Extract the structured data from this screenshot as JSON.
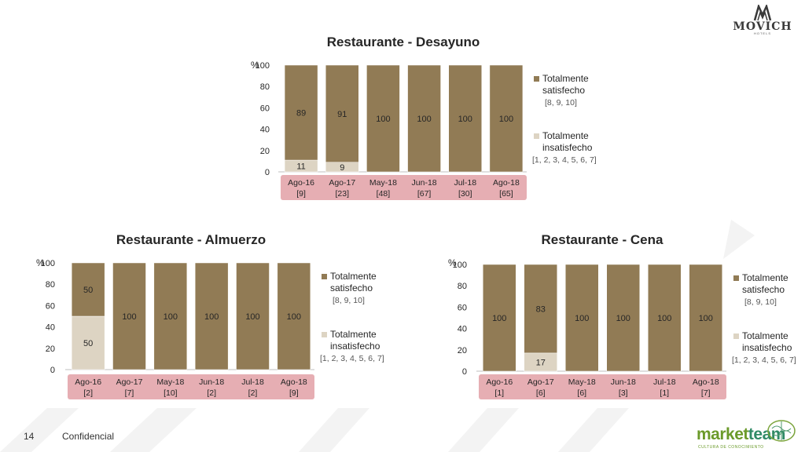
{
  "brand_logo": {
    "name": "MOVICH",
    "sub": "HOTELS"
  },
  "footer": {
    "page": "14",
    "label": "Confidencial",
    "partner_logo": {
      "main_a": "market",
      "main_b": "team",
      "sub": "CULTURA DE CONOCIMIENTO"
    }
  },
  "colors": {
    "satisfied": "#917b55",
    "unsatisfied": "#ddd4c3",
    "xband": "#e6aeb3",
    "text": "#262626"
  },
  "chart_data": [
    {
      "type": "bar",
      "stacked": true,
      "title": "Restaurante - Desayuno",
      "y_unit": "%",
      "ylim": [
        0,
        100
      ],
      "yticks": [
        0,
        20,
        40,
        60,
        80,
        100
      ],
      "categories": [
        "Ago-16",
        "Ago-17",
        "May-18",
        "Jun-18",
        "Jul-18",
        "Ago-18"
      ],
      "n_labels": [
        "[9]",
        "[23]",
        "[48]",
        "[67]",
        "[30]",
        "[65]"
      ],
      "series": [
        {
          "name": "Totalmente insatisfecho",
          "scale": "[1, 2, 3, 4, 5, 6, 7]",
          "values": [
            11,
            9,
            0,
            0,
            0,
            0
          ],
          "labels": [
            "11",
            "9",
            "",
            "",
            "",
            ""
          ]
        },
        {
          "name": "Totalmente satisfecho",
          "scale": "[8, 9, 10]",
          "values": [
            89,
            91,
            100,
            100,
            100,
            100
          ],
          "labels": [
            "89",
            "91",
            "100",
            "100",
            "100",
            "100"
          ]
        }
      ],
      "legend": "right"
    },
    {
      "type": "bar",
      "stacked": true,
      "title": "Restaurante - Almuerzo",
      "y_unit": "%",
      "ylim": [
        0,
        100
      ],
      "yticks": [
        0,
        20,
        40,
        60,
        80,
        100
      ],
      "categories": [
        "Ago-16",
        "Ago-17",
        "May-18",
        "Jun-18",
        "Jul-18",
        "Ago-18"
      ],
      "n_labels": [
        "[2]",
        "[7]",
        "[10]",
        "[2]",
        "[2]",
        "[9]"
      ],
      "series": [
        {
          "name": "Totalmente insatisfecho",
          "scale": "[1, 2, 3, 4, 5, 6, 7]",
          "values": [
            50,
            0,
            0,
            0,
            0,
            0
          ],
          "labels": [
            "50",
            "",
            "",
            "",
            "",
            ""
          ]
        },
        {
          "name": "Totalmente satisfecho",
          "scale": "[8, 9, 10]",
          "values": [
            50,
            100,
            100,
            100,
            100,
            100
          ],
          "labels": [
            "50",
            "100",
            "100",
            "100",
            "100",
            "100"
          ]
        }
      ],
      "legend": "right"
    },
    {
      "type": "bar",
      "stacked": true,
      "title": "Restaurante - Cena",
      "y_unit": "%",
      "ylim": [
        0,
        100
      ],
      "yticks": [
        0,
        20,
        40,
        60,
        80,
        100
      ],
      "categories": [
        "Ago-16",
        "Ago-17",
        "May-18",
        "Jun-18",
        "Jul-18",
        "Ago-18"
      ],
      "n_labels": [
        "[1]",
        "[6]",
        "[6]",
        "[3]",
        "[1]",
        "[7]"
      ],
      "series": [
        {
          "name": "Totalmente insatisfecho",
          "scale": "[1, 2, 3, 4, 5, 6, 7]",
          "values": [
            0,
            17,
            0,
            0,
            0,
            0
          ],
          "labels": [
            "",
            "17",
            "",
            "",
            "",
            ""
          ]
        },
        {
          "name": "Totalmente satisfecho",
          "scale": "[8, 9, 10]",
          "values": [
            100,
            83,
            100,
            100,
            100,
            100
          ],
          "labels": [
            "100",
            "83",
            "100",
            "100",
            "100",
            "100"
          ]
        }
      ],
      "legend": "right"
    }
  ]
}
